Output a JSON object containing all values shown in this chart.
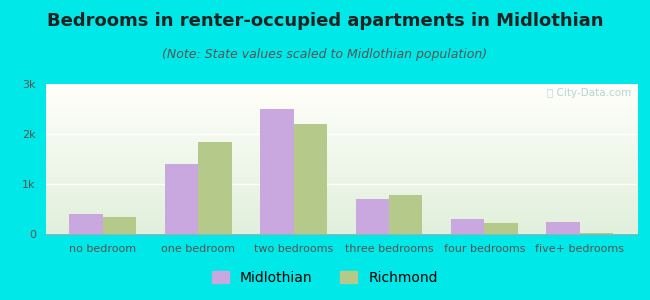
{
  "title": "Bedrooms in renter-occupied apartments in Midlothian",
  "subtitle": "(Note: State values scaled to Midlothian population)",
  "categories": [
    "no bedroom",
    "one bedroom",
    "two bedrooms",
    "three bedrooms",
    "four bedrooms",
    "five+ bedrooms"
  ],
  "midlothian": [
    400,
    1400,
    2500,
    700,
    300,
    250
  ],
  "richmond": [
    350,
    1850,
    2200,
    780,
    230,
    30
  ],
  "midlothian_color": "#c9a8e0",
  "richmond_color": "#b5c98a",
  "background_outer": "#00e8e8",
  "ylim": [
    0,
    3000
  ],
  "yticks": [
    0,
    1000,
    2000,
    3000
  ],
  "ytick_labels": [
    "0",
    "1k",
    "2k",
    "3k"
  ],
  "title_fontsize": 13,
  "subtitle_fontsize": 9,
  "legend_fontsize": 10,
  "bar_width": 0.35,
  "watermark": "ⓘ City-Data.com"
}
